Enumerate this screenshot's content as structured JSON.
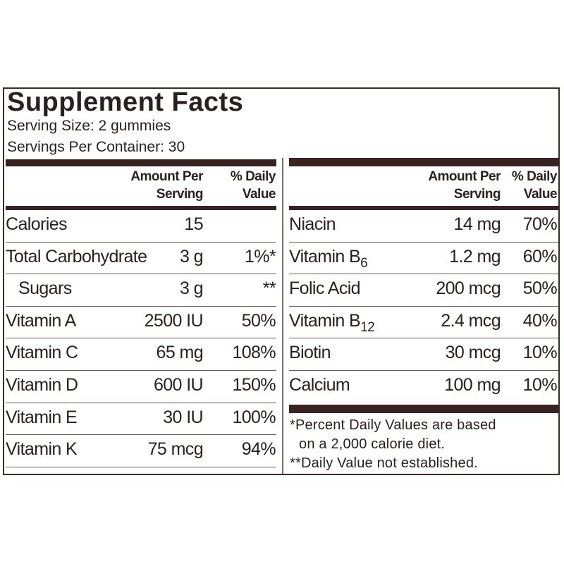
{
  "title": "Supplement Facts",
  "serving_size": "Serving Size:  2 gummies",
  "servings_per_container": "Servings Per Container: 30",
  "left_table": {
    "amount_header": [
      "Amount Per",
      "Serving"
    ],
    "dv_header": [
      "% Daily",
      "Value"
    ],
    "rows": [
      {
        "name": "Calories",
        "amount": "15"
      },
      {
        "name": "Total Carbohydrate",
        "amount": "3 g",
        "dv": "1%*"
      },
      {
        "name": "Sugars",
        "amount": "3 g",
        "dv": "**",
        "indent": true
      },
      {
        "name": "Vitamin A",
        "amount": "2500 IU",
        "dv": "50%"
      },
      {
        "name": "Vitamin C",
        "amount": "65 mg",
        "dv": "108%"
      },
      {
        "name": "Vitamin D",
        "amount": "600 IU",
        "dv": "150%"
      },
      {
        "name": "Vitamin E",
        "amount": "30 IU",
        "dv": "100%"
      },
      {
        "name": "Vitamin K",
        "amount": "75 mcg",
        "dv": "94%"
      }
    ]
  },
  "right_table": {
    "amount_header": [
      "Amount Per",
      "Serving"
    ],
    "dv_header": [
      "% Daily",
      "Value"
    ],
    "rows": [
      {
        "name": "Niacin",
        "amount": "14 mg",
        "dv": "70%"
      },
      {
        "name": "Vitamin B",
        "sub": "6",
        "amount": "1.2 mg",
        "dv": "60%"
      },
      {
        "name": "Folic Acid",
        "amount": "200 mcg",
        "dv": "50%"
      },
      {
        "name": "Vitamin B",
        "sub": "12",
        "amount": "2.4 mcg",
        "dv": "40%"
      },
      {
        "name": "Biotin",
        "amount": "30 mcg",
        "dv": "10%"
      },
      {
        "name": "Calcium",
        "amount": "100 mg",
        "dv": "10%"
      }
    ]
  },
  "footnotes": [
    "*Percent Daily Values are based",
    "on a 2,000 calorie diet.",
    "**Daily Value not established."
  ]
}
